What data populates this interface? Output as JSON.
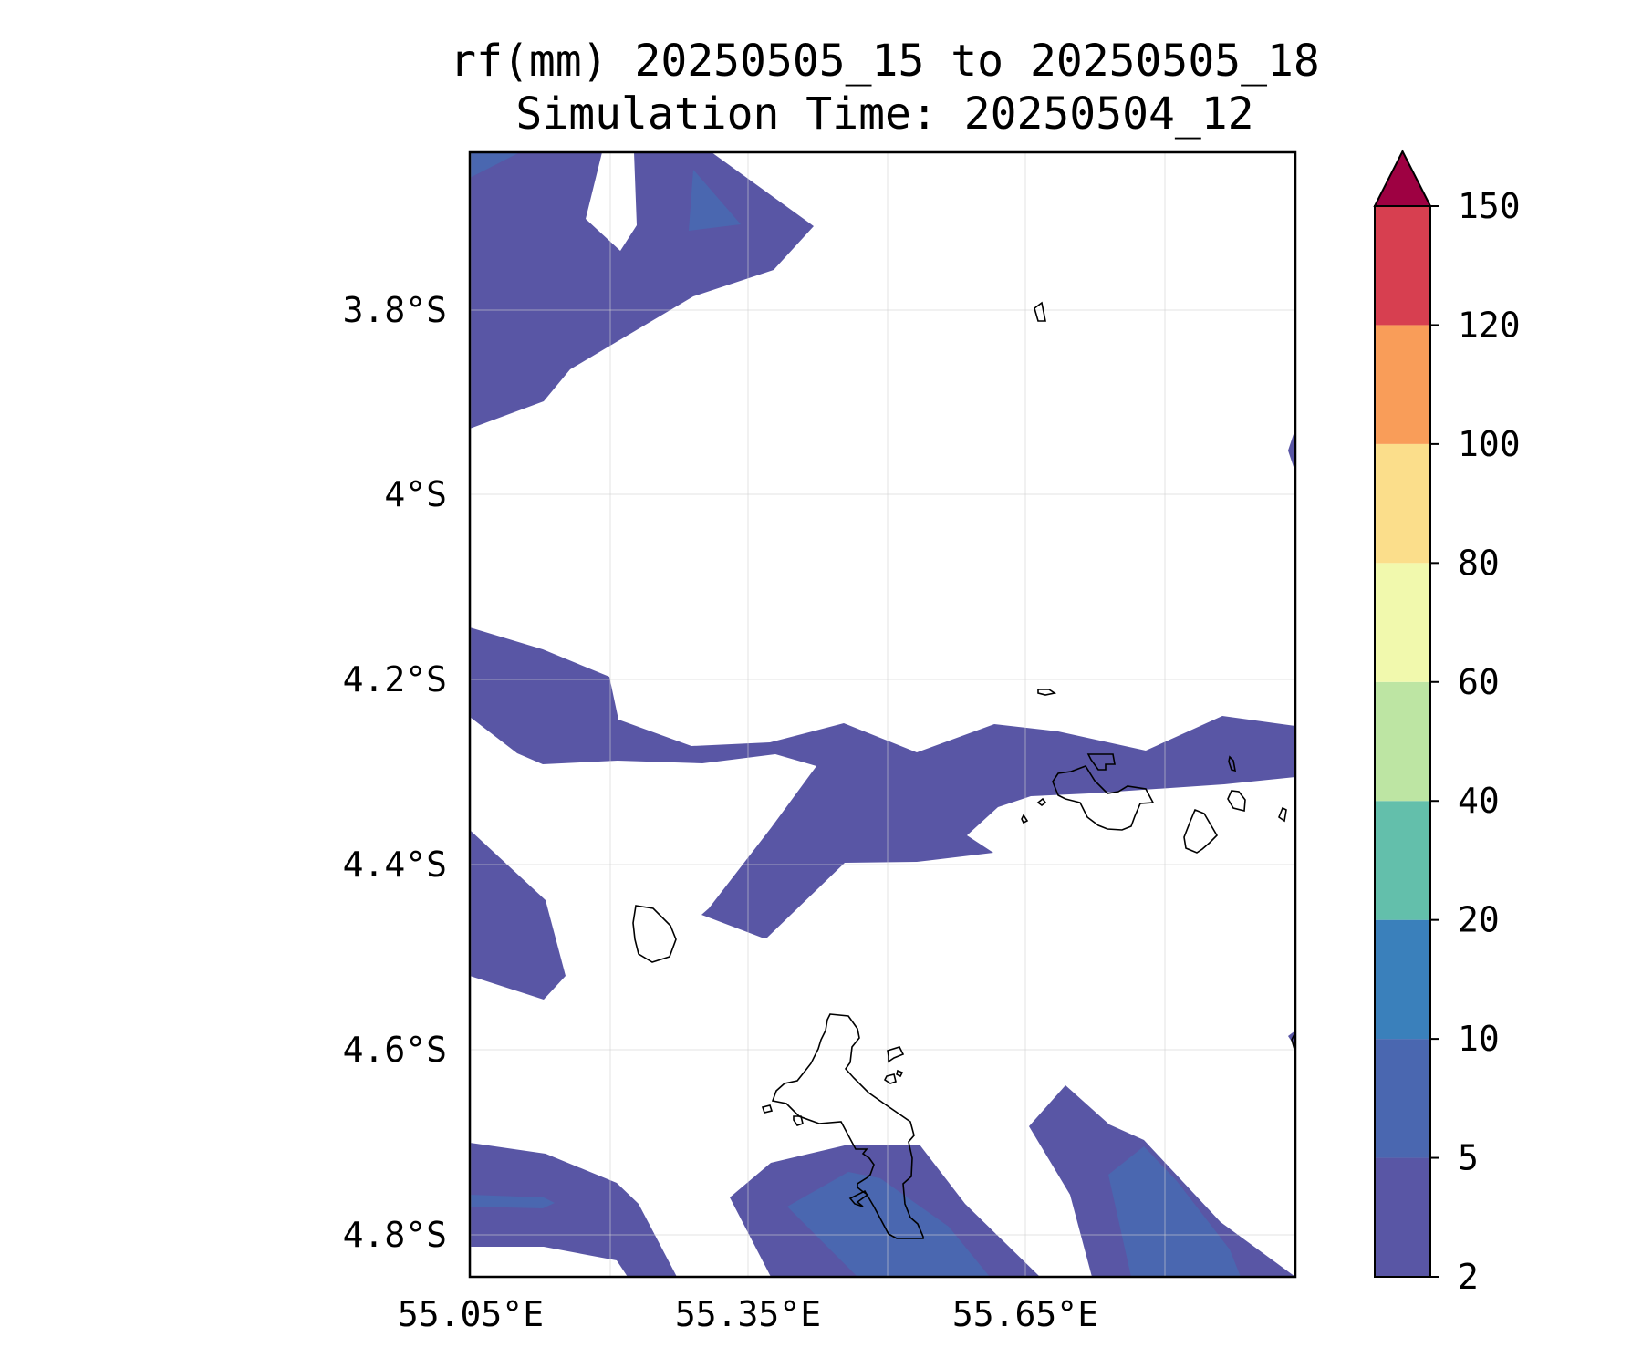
{
  "title": {
    "line1": "rf(mm) 20250505_15 to 20250505_18",
    "line2": "Simulation Time: 20250504_12"
  },
  "map": {
    "lat_ticks": [
      "3.8°S",
      "4°S",
      "4.2°S",
      "4.4°S",
      "4.6°S",
      "4.8°S"
    ],
    "lon_ticks": [
      "55.05°E",
      "55.35°E",
      "55.65°E"
    ],
    "gridlines": true
  },
  "colorbar": {
    "levels": [
      "2",
      "5",
      "10",
      "20",
      "40",
      "60",
      "80",
      "100",
      "120",
      "150"
    ],
    "colors": [
      "#5956a5",
      "#4a67b0",
      "#3a80bb",
      "#63bfab",
      "#bde5a3",
      "#f1f9ad",
      "#fbde8b",
      "#f99d59",
      "#d73f50",
      "#9e0142"
    ],
    "extend": "max"
  },
  "colors": {
    "rain_2_5": "#5956a5",
    "rain_5_10": "#4a67b0",
    "coastline": "#000000",
    "frame": "#000000"
  }
}
